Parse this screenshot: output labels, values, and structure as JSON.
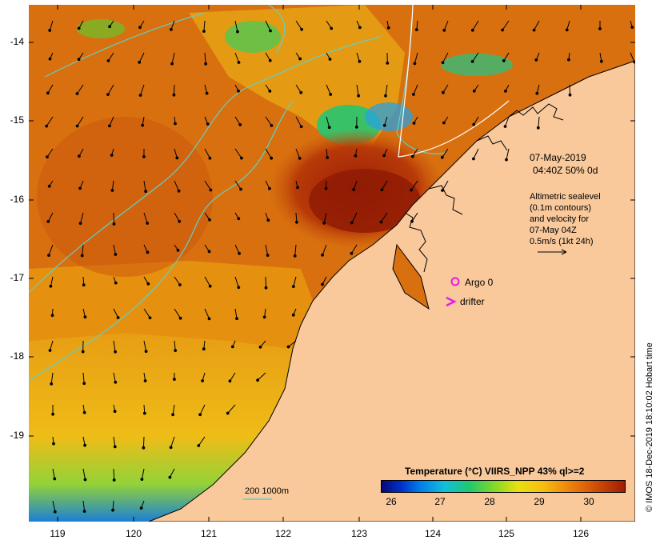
{
  "map": {
    "lat_labels": [
      "-14",
      "-15",
      "-16",
      "-17",
      "-18",
      "-19"
    ],
    "lon_labels": [
      "119",
      "120",
      "121",
      "122",
      "123",
      "124",
      "125",
      "126"
    ],
    "colors": {
      "land": "#f9c89b",
      "ocean_warm": "#d46410",
      "ocean_hot": "#a02208",
      "ocean_mid": "#e89a14",
      "ocean_cool": "#1bd27a",
      "ocean_cold": "#1060e0",
      "contour": "#5fd0c8",
      "coastline": "#000000"
    },
    "info_box": {
      "date": "07-May-2019",
      "time_line": "04:40Z  50% 0d",
      "altimetric_line1": "Altimetric sealevel",
      "altimetric_line2": "(0.1m contours)",
      "altimetric_line3": "and velocity for",
      "altimetric_line4": "07-May 04Z",
      "scale_label": "0.5m/s (1kt 24h)"
    },
    "legend": {
      "argo_label": "Argo 0",
      "drifter_label": "drifter",
      "argo_color": "#e020e0",
      "drifter_color": "#e020e0"
    },
    "depth_contour_label": "200  1000m",
    "colorbar": {
      "title": "Temperature (°C) VIIRS_NPP 43% ql>=2",
      "ticks": [
        "26",
        "27",
        "28",
        "29",
        "30"
      ]
    },
    "credit": "© IMOS 18-Dec-2019 18:10:02 Hobart time"
  }
}
